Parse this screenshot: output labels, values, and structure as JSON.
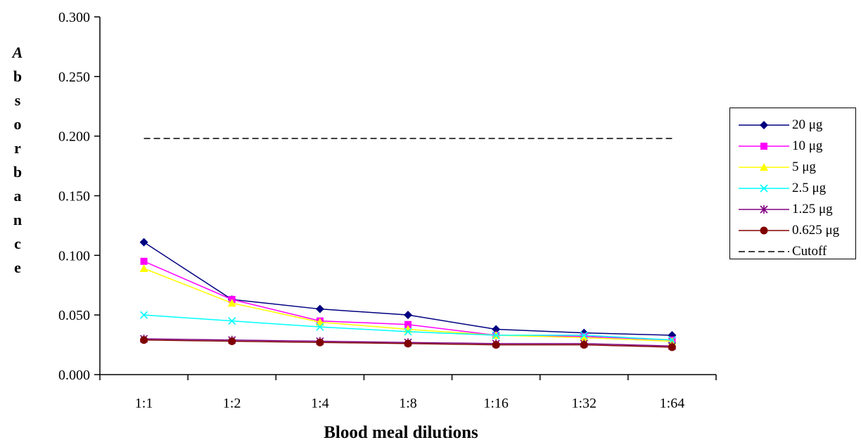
{
  "chart_data": {
    "type": "line",
    "title": "",
    "xlabel": "Blood meal dilutions",
    "ylabel": "Absorbance",
    "categories": [
      "1:1",
      "1:2",
      "1:4",
      "1:8",
      "1:16",
      "1:32",
      "1:64"
    ],
    "ylim": [
      0,
      0.3
    ],
    "yticks": [
      "0.000",
      "0.050",
      "0.100",
      "0.150",
      "0.200",
      "0.250",
      "0.300"
    ],
    "grid": false,
    "legend_position": "right",
    "series": [
      {
        "name": "20 μg",
        "color": "#000080",
        "marker": "diamond",
        "values": [
          0.111,
          0.063,
          0.055,
          0.05,
          0.038,
          0.035,
          0.033
        ]
      },
      {
        "name": "10 μg",
        "color": "#ff00ff",
        "marker": "square",
        "values": [
          0.095,
          0.063,
          0.045,
          0.042,
          0.033,
          0.032,
          0.029
        ]
      },
      {
        "name": "5 μg",
        "color": "#ffff00",
        "marker": "triangle",
        "values": [
          0.089,
          0.06,
          0.044,
          0.038,
          0.033,
          0.031,
          0.028
        ]
      },
      {
        "name": "2.5 μg",
        "color": "#00ffff",
        "marker": "x",
        "values": [
          0.05,
          0.045,
          0.04,
          0.036,
          0.033,
          0.033,
          0.029
        ]
      },
      {
        "name": "1.25 μg",
        "color": "#800080",
        "marker": "star",
        "values": [
          0.03,
          0.029,
          0.028,
          0.027,
          0.026,
          0.026,
          0.024
        ]
      },
      {
        "name": "0.625 μg",
        "color": "#800000",
        "marker": "circle",
        "values": [
          0.029,
          0.028,
          0.027,
          0.026,
          0.025,
          0.025,
          0.023
        ]
      },
      {
        "name": "Cutoff",
        "color": "#000000",
        "marker": "none",
        "dashed": true,
        "values": [
          0.198,
          0.198,
          0.198,
          0.198,
          0.198,
          0.198,
          0.198
        ]
      }
    ]
  }
}
